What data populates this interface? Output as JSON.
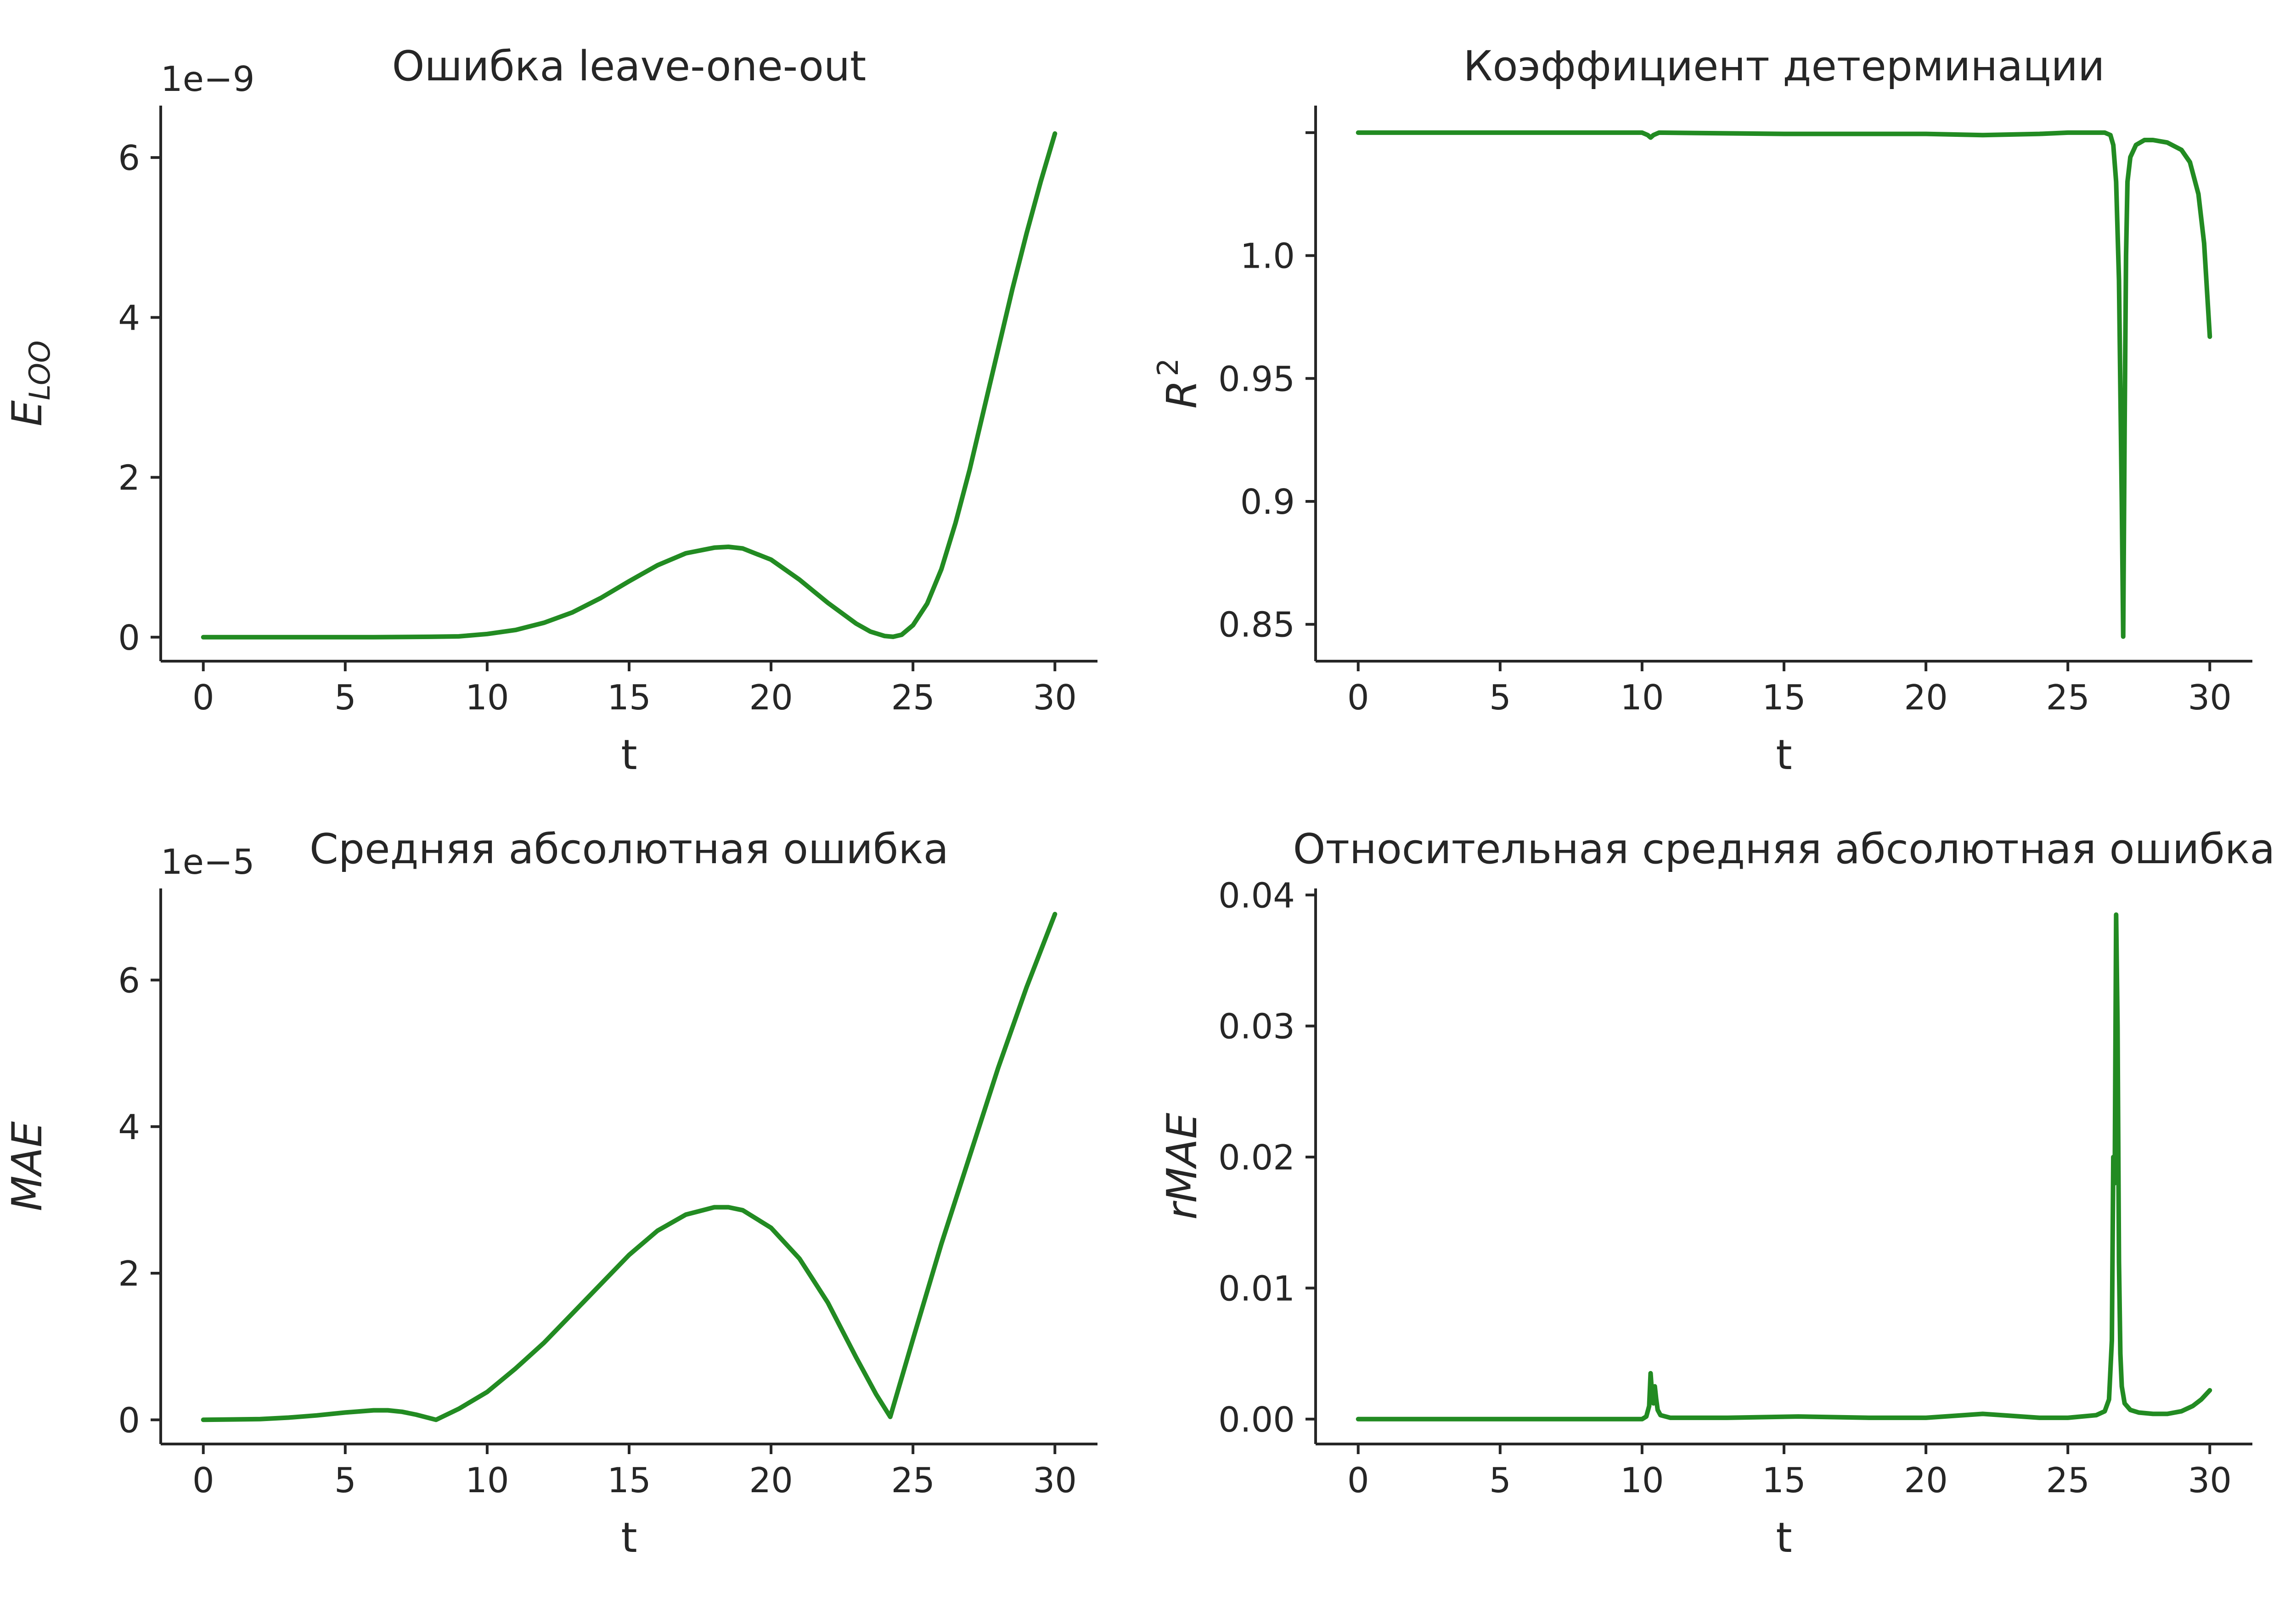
{
  "colors": {
    "line": "#228b22",
    "axis": "#262626"
  },
  "chart_data": [
    {
      "type": "line",
      "title": "Ошибка leave-one-out",
      "xlabel": "t",
      "ylabel": "E",
      "ylabel_sub": "LOO",
      "offset_text": "1e−9",
      "x_ticks": [
        0,
        5,
        10,
        15,
        20,
        25,
        30
      ],
      "x_tick_labels": [
        "0",
        "5",
        "10",
        "15",
        "20",
        "25",
        "30"
      ],
      "y_ticks": [
        0,
        2,
        4,
        6
      ],
      "y_tick_labels": [
        "0",
        "2",
        "4",
        "6"
      ],
      "xlim": [
        -1.5,
        31.5
      ],
      "ylim": [
        -0.3,
        6.65
      ],
      "series": [
        {
          "x": [
            0,
            2,
            4,
            6,
            8,
            9,
            10,
            11,
            12,
            13,
            14,
            15,
            16,
            17,
            18,
            18.5,
            19,
            20,
            21,
            22,
            23,
            23.5,
            24,
            24.3,
            24.6,
            25,
            25.5,
            26,
            26.5,
            27,
            27.5,
            28,
            28.5,
            29,
            29.5,
            30
          ],
          "y": [
            0,
            0,
            0,
            0,
            0.005,
            0.01,
            0.04,
            0.09,
            0.18,
            0.31,
            0.49,
            0.7,
            0.9,
            1.05,
            1.12,
            1.13,
            1.11,
            0.97,
            0.72,
            0.43,
            0.17,
            0.07,
            0.015,
            0.005,
            0.03,
            0.15,
            0.42,
            0.85,
            1.43,
            2.1,
            2.85,
            3.6,
            4.35,
            5.05,
            5.7,
            6.3
          ]
        }
      ]
    },
    {
      "type": "line",
      "title": "Коэффициент детерминации",
      "xlabel": "t",
      "ylabel": "R",
      "ylabel_sup": "2",
      "offset_text": "",
      "x_ticks": [
        0,
        5,
        10,
        15,
        20,
        25,
        30
      ],
      "x_tick_labels": [
        "0",
        "5",
        "10",
        "15",
        "20",
        "25",
        "30"
      ],
      "y_ticks": [
        0.85,
        0.9,
        0.95,
        1.0,
        1.05
      ],
      "y_tick_labels": [
        "0.85",
        "0.9",
        "0.95",
        "1.0",
        ""
      ],
      "xlim": [
        -1.5,
        31.5
      ],
      "ylim": [
        0.835,
        1.061
      ],
      "series": [
        {
          "x": [
            0,
            5,
            10,
            10.2,
            10.3,
            10.4,
            10.6,
            15,
            20,
            22,
            24,
            25,
            26,
            26.3,
            26.5,
            26.6,
            26.7,
            26.8,
            26.9,
            26.95,
            27.0,
            27.05,
            27.1,
            27.2,
            27.4,
            27.7,
            28,
            28.5,
            29,
            29.3,
            29.6,
            29.8,
            30
          ],
          "y": [
            1.05,
            1.05,
            1.05,
            1.049,
            1.048,
            1.049,
            1.05,
            1.0495,
            1.0495,
            1.049,
            1.0495,
            1.05,
            1.05,
            1.05,
            1.049,
            1.045,
            1.03,
            0.99,
            0.9,
            0.845,
            0.93,
            1.0,
            1.03,
            1.04,
            1.045,
            1.047,
            1.047,
            1.046,
            1.043,
            1.038,
            1.025,
            1.005,
            0.967
          ]
        }
      ]
    },
    {
      "type": "line",
      "title": "Средняя абсолютная ошибка",
      "xlabel": "t",
      "ylabel": "MAE",
      "offset_text": "1e−5",
      "x_ticks": [
        0,
        5,
        10,
        15,
        20,
        25,
        30
      ],
      "x_tick_labels": [
        "0",
        "5",
        "10",
        "15",
        "20",
        "25",
        "30"
      ],
      "y_ticks": [
        0,
        2,
        4,
        6
      ],
      "y_tick_labels": [
        "0",
        "2",
        "4",
        "6"
      ],
      "xlim": [
        -1.5,
        31.5
      ],
      "ylim": [
        -0.33,
        7.25
      ],
      "series": [
        {
          "x": [
            0,
            2,
            3,
            4,
            5,
            6,
            6.5,
            7,
            7.5,
            8.2,
            9,
            10,
            11,
            12,
            13,
            14,
            15,
            16,
            17,
            18,
            18.5,
            19,
            20,
            21,
            22,
            23,
            23.7,
            24.2,
            25,
            26,
            27,
            28,
            29,
            30
          ],
          "y": [
            0,
            0.01,
            0.03,
            0.06,
            0.1,
            0.13,
            0.13,
            0.11,
            0.07,
            0,
            0.15,
            0.38,
            0.7,
            1.05,
            1.45,
            1.85,
            2.25,
            2.58,
            2.8,
            2.9,
            2.9,
            2.86,
            2.62,
            2.2,
            1.6,
            0.85,
            0.35,
            0.04,
            1.1,
            2.4,
            3.6,
            4.8,
            5.9,
            6.9
          ]
        }
      ]
    },
    {
      "type": "line",
      "title": "Относительная средняя абсолютная ошибка",
      "xlabel": "t",
      "ylabel": "rMAE",
      "offset_text": "",
      "x_ticks": [
        0,
        5,
        10,
        15,
        20,
        25,
        30
      ],
      "x_tick_labels": [
        "0",
        "5",
        "10",
        "15",
        "20",
        "25",
        "30"
      ],
      "y_ticks": [
        0,
        0.01,
        0.02,
        0.03,
        0.04
      ],
      "y_tick_labels": [
        "0.00",
        "0.01",
        "0.02",
        "0.03",
        "0.04"
      ],
      "xlim": [
        -1.5,
        31.5
      ],
      "ylim": [
        -0.0019,
        0.0405
      ],
      "series": [
        {
          "x": [
            0,
            5,
            10,
            10.15,
            10.25,
            10.3,
            10.35,
            10.4,
            10.45,
            10.5,
            10.55,
            10.65,
            11,
            13,
            15.5,
            18,
            20,
            22,
            24,
            25,
            26,
            26.3,
            26.45,
            26.55,
            26.6,
            26.65,
            26.7,
            26.75,
            26.8,
            26.85,
            26.9,
            27.0,
            27.2,
            27.5,
            28,
            28.5,
            29,
            29.4,
            29.7,
            30
          ],
          "y": [
            0,
            0,
            0,
            0.0002,
            0.001,
            0.0035,
            0.002,
            0.0012,
            0.0025,
            0.0015,
            0.0007,
            0.0003,
            0.0001,
            0.0001,
            0.0002,
            0.0001,
            0.0001,
            0.0004,
            0.0001,
            0.0001,
            0.0003,
            0.0006,
            0.0015,
            0.006,
            0.02,
            0.018,
            0.0385,
            0.03,
            0.012,
            0.005,
            0.0025,
            0.0012,
            0.0007,
            0.0005,
            0.0004,
            0.0004,
            0.0006,
            0.001,
            0.0015,
            0.0022
          ]
        }
      ]
    }
  ]
}
